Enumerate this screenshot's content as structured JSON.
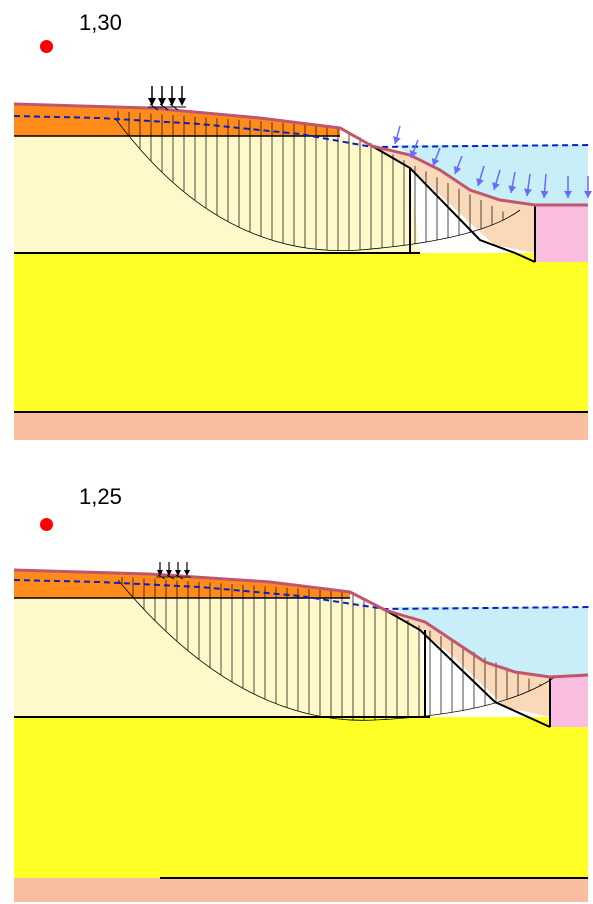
{
  "panels": [
    {
      "factor_of_safety": "1,30"
    },
    {
      "factor_of_safety": "1,25"
    }
  ],
  "colors": {
    "critical_point": "#ff0000",
    "fill_layer": "#ff8c1a",
    "upper_soil": "#fff8c8",
    "lower_soil": "#ffff26",
    "base_layer": "#f9bea0",
    "slope_fill": "#f9d9b8",
    "water": "#c8eef8",
    "structure": "#f9bde0",
    "terrain_line": "#c0556e",
    "water_table": "#0a1ec8",
    "water_pressure_arrows": "#6a6aff",
    "slip_surface": "#000000"
  },
  "icons": {
    "surcharge": "load-arrows-icon",
    "critical_point": "red-dot-icon",
    "water_pressure": "pressure-arrow-icon"
  }
}
